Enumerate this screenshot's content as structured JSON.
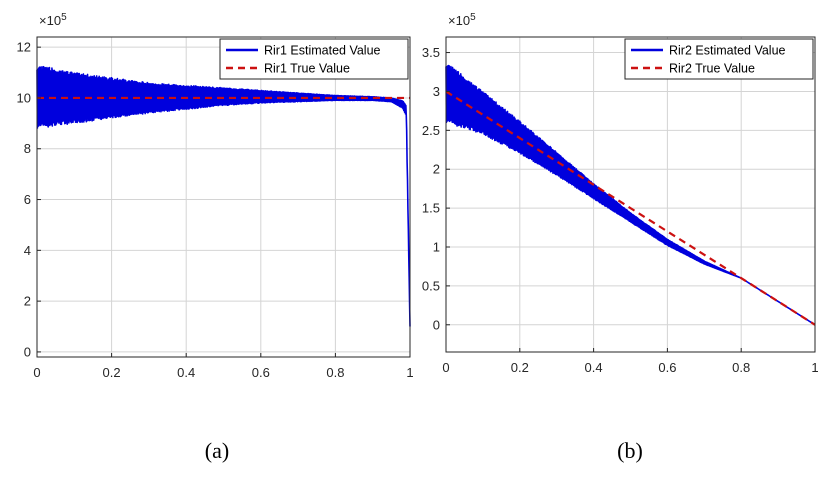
{
  "colors": {
    "estimated": "#0000dd",
    "true": "#cc1111",
    "grid": "#d4d4d4",
    "axis": "#262626"
  },
  "chart_data": [
    {
      "type": "line",
      "caption": "(a)",
      "exponent_label": "×10",
      "exponent_power": "5",
      "xlim": [
        0,
        1
      ],
      "ylim": [
        -0.2,
        12.4
      ],
      "xticks": [
        0,
        0.2,
        0.4,
        0.6,
        0.8,
        1
      ],
      "xtick_labels": [
        "0",
        "0.2",
        "0.4",
        "0.6",
        "0.8",
        "1"
      ],
      "yticks": [
        0,
        2,
        4,
        6,
        8,
        10,
        12
      ],
      "ytick_labels": [
        "0",
        "2",
        "4",
        "6",
        "8",
        "10",
        "12"
      ],
      "grid": true,
      "legend_position": "top-right",
      "series": [
        {
          "name": "Rir1 Estimated Value",
          "style": "solid-oscillating",
          "x": [
            0,
            0.1,
            0.2,
            0.3,
            0.4,
            0.5,
            0.6,
            0.7,
            0.8,
            0.9,
            0.95,
            0.98,
            0.99,
            1.0
          ],
          "upper": [
            11.3,
            11.0,
            10.8,
            10.6,
            10.5,
            10.4,
            10.3,
            10.2,
            10.1,
            10.05,
            10.0,
            9.9,
            9.7,
            1.0
          ],
          "lower": [
            8.8,
            9.0,
            9.2,
            9.4,
            9.55,
            9.7,
            9.8,
            9.85,
            9.9,
            9.9,
            9.85,
            9.6,
            9.3,
            1.0
          ]
        },
        {
          "name": "Rir1 True Value",
          "style": "dashed",
          "x": [
            0,
            1
          ],
          "y": [
            10,
            10
          ]
        }
      ]
    },
    {
      "type": "line",
      "caption": "(b)",
      "exponent_label": "×10",
      "exponent_power": "5",
      "xlim": [
        0,
        1
      ],
      "ylim": [
        -0.35,
        3.7
      ],
      "xticks": [
        0,
        0.2,
        0.4,
        0.6,
        0.8,
        1
      ],
      "xtick_labels": [
        "0",
        "0.2",
        "0.4",
        "0.6",
        "0.8",
        "1"
      ],
      "yticks": [
        0,
        0.5,
        1,
        1.5,
        2,
        2.5,
        3,
        3.5
      ],
      "ytick_labels": [
        "0",
        "0.5",
        "1",
        "1.5",
        "2",
        "2.5",
        "3",
        "3.5"
      ],
      "grid": true,
      "legend_position": "top-right",
      "series": [
        {
          "name": "Rir2 Estimated Value",
          "style": "solid-oscillating",
          "x": [
            0,
            0.1,
            0.2,
            0.3,
            0.4,
            0.5,
            0.6,
            0.7,
            0.8,
            0.9,
            1.0
          ],
          "upper": [
            3.38,
            3.0,
            2.62,
            2.22,
            1.82,
            1.44,
            1.1,
            0.82,
            0.6,
            0.3,
            0.0
          ],
          "lower": [
            2.6,
            2.45,
            2.2,
            1.92,
            1.62,
            1.32,
            1.02,
            0.78,
            0.6,
            0.3,
            0.0
          ]
        },
        {
          "name": "Rir2 True Value",
          "style": "dashed",
          "x": [
            0,
            1
          ],
          "y": [
            3,
            0
          ]
        }
      ]
    }
  ]
}
